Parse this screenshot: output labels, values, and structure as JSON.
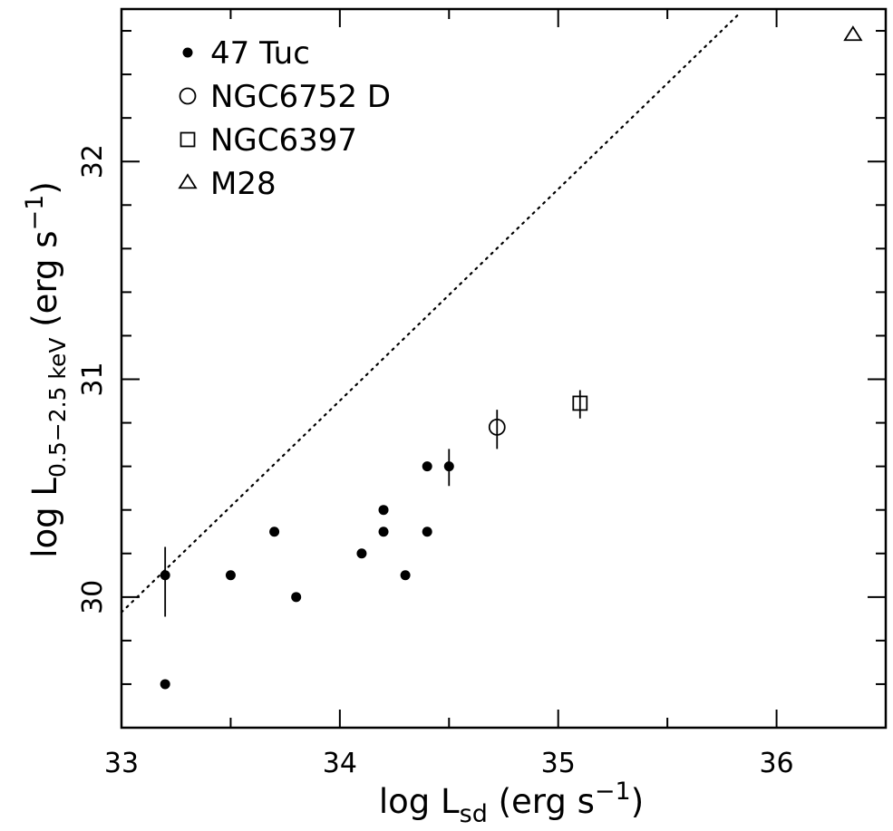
{
  "chart_data": {
    "type": "scatter",
    "xlabel": {
      "main": "log L",
      "sub": "sd",
      "unit_pre": " (erg s",
      "unit_sup": "−1",
      "unit_post": ")"
    },
    "ylabel": {
      "main": "log L",
      "sub": "0.5−2.5 keV",
      "unit_pre": " (erg s",
      "unit_sup": "−1",
      "unit_post": ")"
    },
    "xlim": [
      33.0,
      36.5
    ],
    "ylim": [
      29.4,
      32.7
    ],
    "x_ticks": [
      "33",
      "34",
      "35",
      "36"
    ],
    "y_ticks": [
      "30",
      "31",
      "32"
    ],
    "grid": false,
    "legend_position": "top-left",
    "reference_line": {
      "style": "dotted",
      "x": [
        33.0,
        35.82
      ],
      "y": [
        29.93,
        32.67
      ]
    },
    "series": [
      {
        "name": "47 Tuc",
        "marker": "filled-circle",
        "points": [
          {
            "x": 33.2,
            "y": 30.1,
            "yerr": [
              0.19,
              0.13
            ]
          },
          {
            "x": 33.2,
            "y": 29.6
          },
          {
            "x": 33.5,
            "y": 30.1
          },
          {
            "x": 33.7,
            "y": 30.3
          },
          {
            "x": 33.8,
            "y": 30.0
          },
          {
            "x": 34.1,
            "y": 30.2
          },
          {
            "x": 34.2,
            "y": 30.4
          },
          {
            "x": 34.2,
            "y": 30.3
          },
          {
            "x": 34.3,
            "y": 30.1
          },
          {
            "x": 34.4,
            "y": 30.6
          },
          {
            "x": 34.4,
            "y": 30.3
          },
          {
            "x": 34.5,
            "y": 30.6,
            "yerr": [
              0.09,
              0.08
            ]
          }
        ]
      },
      {
        "name": "NGC6752 D",
        "marker": "open-circle",
        "points": [
          {
            "x": 34.72,
            "y": 30.78,
            "yerr": [
              0.1,
              0.08
            ]
          }
        ]
      },
      {
        "name": "NGC6397",
        "marker": "open-square",
        "points": [
          {
            "x": 35.1,
            "y": 30.89,
            "yerr": [
              0.07,
              0.06
            ]
          }
        ]
      },
      {
        "name": "M28",
        "marker": "open-triangle",
        "points": [
          {
            "x": 36.35,
            "y": 32.58
          }
        ]
      }
    ]
  }
}
